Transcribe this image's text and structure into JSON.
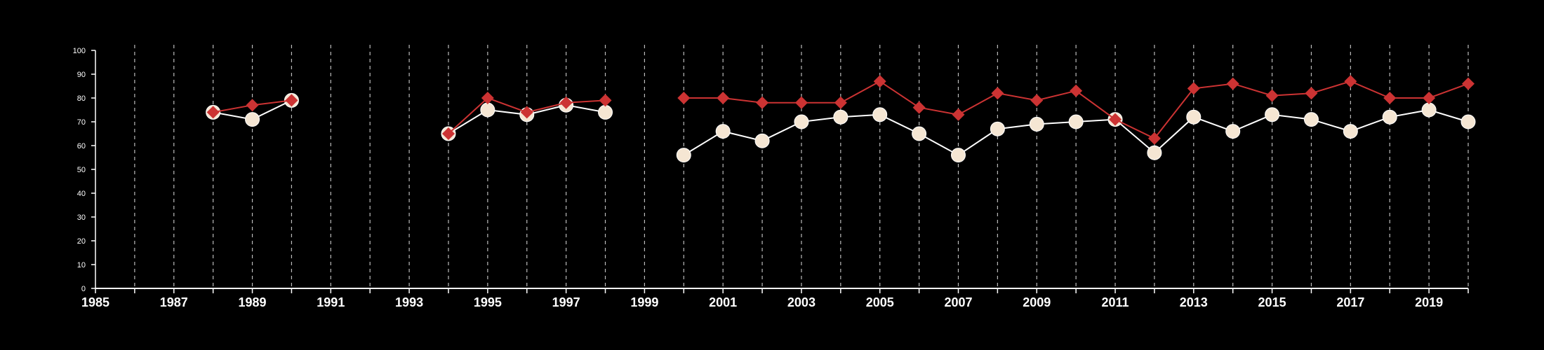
{
  "chart_data": {
    "type": "line",
    "title": "",
    "xlabel": "",
    "ylabel": "",
    "xlim": [
      1985,
      2020
    ],
    "ylim": [
      0,
      100
    ],
    "x_tick_labels": [
      "1985",
      "1987",
      "1989",
      "1991",
      "1993",
      "1995",
      "1997",
      "1999",
      "2001",
      "2003",
      "2005",
      "2007",
      "2009",
      "2011",
      "2013",
      "2015",
      "2017",
      "2019"
    ],
    "y_tick_labels": [
      "0",
      "10",
      "20",
      "30",
      "40",
      "50",
      "60",
      "70",
      "80",
      "90",
      "100"
    ],
    "grid": "vertical dashed lines at each year",
    "legend": "none",
    "series": [
      {
        "color": "#cc3333",
        "marker": "diamond",
        "points": [
          [
            1988,
            74
          ],
          [
            1989,
            77
          ],
          [
            1990,
            79
          ],
          [
            1994,
            65
          ],
          [
            1995,
            80
          ],
          [
            1996,
            74
          ],
          [
            1997,
            78
          ],
          [
            1998,
            79
          ],
          [
            2000,
            80
          ],
          [
            2001,
            80
          ],
          [
            2002,
            78
          ],
          [
            2003,
            78
          ],
          [
            2004,
            78
          ],
          [
            2005,
            87
          ],
          [
            2006,
            76
          ],
          [
            2007,
            73
          ],
          [
            2008,
            82
          ],
          [
            2009,
            79
          ],
          [
            2010,
            83
          ],
          [
            2011,
            71
          ],
          [
            2012,
            63
          ],
          [
            2013,
            84
          ],
          [
            2014,
            86
          ],
          [
            2015,
            81
          ],
          [
            2016,
            82
          ],
          [
            2017,
            87
          ],
          [
            2018,
            80
          ],
          [
            2019,
            80
          ],
          [
            2020,
            86
          ]
        ]
      },
      {
        "color": "#f5e6d3",
        "marker": "circle",
        "points": [
          [
            1988,
            74
          ],
          [
            1989,
            71
          ],
          [
            1990,
            79
          ],
          [
            1994,
            65
          ],
          [
            1995,
            75
          ],
          [
            1996,
            73
          ],
          [
            1997,
            77
          ],
          [
            1998,
            74
          ],
          [
            2000,
            56
          ],
          [
            2001,
            66
          ],
          [
            2002,
            62
          ],
          [
            2003,
            70
          ],
          [
            2004,
            72
          ],
          [
            2005,
            73
          ],
          [
            2006,
            65
          ],
          [
            2007,
            56
          ],
          [
            2008,
            67
          ],
          [
            2009,
            69
          ],
          [
            2010,
            70
          ],
          [
            2011,
            71
          ],
          [
            2012,
            57
          ],
          [
            2013,
            72
          ],
          [
            2014,
            66
          ],
          [
            2015,
            73
          ],
          [
            2016,
            71
          ],
          [
            2017,
            66
          ],
          [
            2018,
            72
          ],
          [
            2019,
            75
          ],
          [
            2020,
            70
          ]
        ]
      }
    ]
  }
}
